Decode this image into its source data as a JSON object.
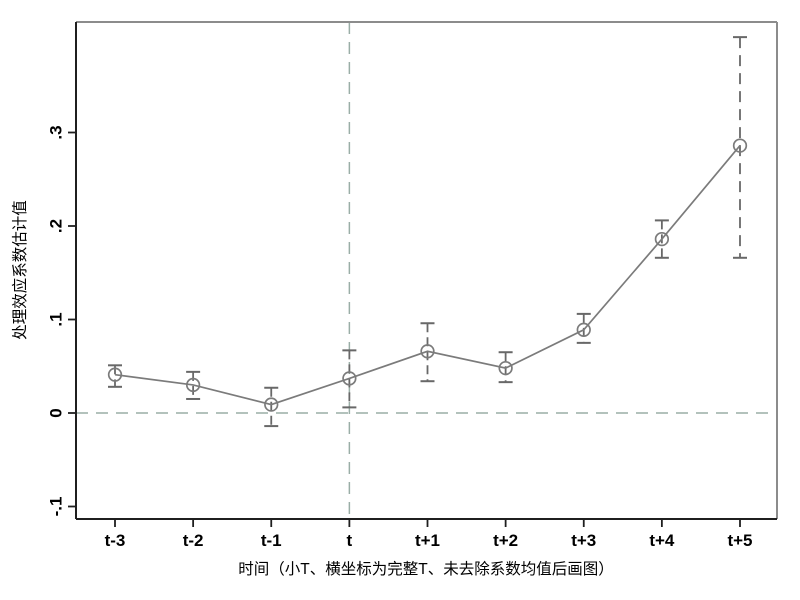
{
  "chart_data": {
    "type": "line",
    "title": "",
    "xlabel": "时间（小T、横坐标为完整T、未去除系数均值后画图）",
    "ylabel": "处理效应系数估计值",
    "categories": [
      "t-3",
      "t-2",
      "t-1",
      "t",
      "t+1",
      "t+2",
      "t+3",
      "t+4",
      "t+5"
    ],
    "series": [
      {
        "name": "处理效应系数估计值",
        "marker": "hollow-circle",
        "values": [
          0.041,
          0.03,
          0.009,
          0.037,
          0.066,
          0.048,
          0.089,
          0.186,
          0.286
        ],
        "ci_low": [
          0.028,
          0.015,
          -0.014,
          0.006,
          0.034,
          0.033,
          0.075,
          0.166,
          0.166
        ],
        "ci_high": [
          0.051,
          0.044,
          0.027,
          0.067,
          0.096,
          0.065,
          0.106,
          0.206,
          0.402
        ]
      }
    ],
    "y_ticks": {
      "labels": [
        "-.1",
        "0",
        ".1",
        ".2",
        ".3"
      ],
      "values": [
        -0.1,
        0,
        0.1,
        0.2,
        0.3
      ]
    },
    "ylim": [
      -0.113,
      0.418
    ],
    "grid": false,
    "legend": false,
    "error_bar_style": "dashed-with-caps",
    "reference_lines": {
      "horizontal_at_value": 0,
      "vertical_at_category": "t",
      "style": "dashed"
    },
    "colors": {
      "series": "#7b7b7b",
      "error_bar": "#686868",
      "reference_line": "#9aaea6",
      "axis": "#1f1f1f",
      "box_border": "#8c8c8c",
      "text": "#000000",
      "background": "#ffffff"
    }
  }
}
